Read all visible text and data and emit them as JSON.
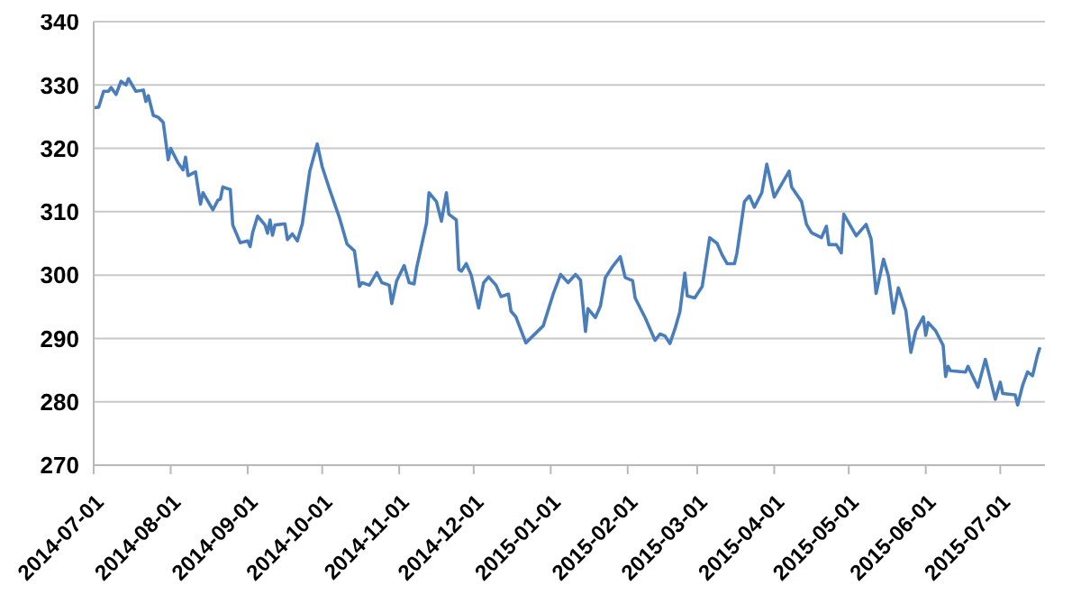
{
  "chart_data": {
    "type": "line",
    "color": "#4a7ebb",
    "marker": "none",
    "line_style": "solid",
    "grid": "y",
    "legend": false,
    "xlim": [
      "2014-07-01",
      "2015-07-19"
    ],
    "xticks": [
      "2014-07-01",
      "2014-08-01",
      "2014-09-01",
      "2014-10-01",
      "2014-11-01",
      "2014-12-01",
      "2015-01-01",
      "2015-02-01",
      "2015-03-01",
      "2015-04-01",
      "2015-05-01",
      "2015-06-01",
      "2015-07-01"
    ],
    "ylim": [
      270,
      340
    ],
    "yticks": [
      270,
      280,
      290,
      300,
      310,
      320,
      330,
      340
    ],
    "x": [
      "2014-07-01",
      "2014-07-03",
      "2014-07-05",
      "2014-07-07",
      "2014-07-08",
      "2014-07-10",
      "2014-07-12",
      "2014-07-14",
      "2014-07-15",
      "2014-07-18",
      "2014-07-21",
      "2014-07-22",
      "2014-07-23",
      "2014-07-25",
      "2014-07-27",
      "2014-07-29",
      "2014-07-31",
      "2014-08-01",
      "2014-08-04",
      "2014-08-06",
      "2014-08-07",
      "2014-08-08",
      "2014-08-11",
      "2014-08-13",
      "2014-08-14",
      "2014-08-18",
      "2014-08-20",
      "2014-08-21",
      "2014-08-22",
      "2014-08-25",
      "2014-08-26",
      "2014-08-29",
      "2014-09-01",
      "2014-09-02",
      "2014-09-03",
      "2014-09-05",
      "2014-09-08",
      "2014-09-09",
      "2014-09-10",
      "2014-09-11",
      "2014-09-12",
      "2014-09-16",
      "2014-09-17",
      "2014-09-19",
      "2014-09-21",
      "2014-09-23",
      "2014-09-26",
      "2014-09-29",
      "2014-10-01",
      "2014-10-04",
      "2014-10-08",
      "2014-10-11",
      "2014-10-14",
      "2014-10-16",
      "2014-10-17",
      "2014-10-20",
      "2014-10-23",
      "2014-10-25",
      "2014-10-28",
      "2014-10-29",
      "2014-10-31",
      "2014-11-03",
      "2014-11-05",
      "2014-11-07",
      "2014-11-08",
      "2014-11-12",
      "2014-11-13",
      "2014-11-16",
      "2014-11-18",
      "2014-11-20",
      "2014-11-21",
      "2014-11-24",
      "2014-11-25",
      "2014-11-26",
      "2014-11-28",
      "2014-11-30",
      "2014-12-03",
      "2014-12-05",
      "2014-12-07",
      "2014-12-10",
      "2014-12-12",
      "2014-12-15",
      "2014-12-16",
      "2014-12-18",
      "2014-12-22",
      "2014-12-29",
      "2015-01-02",
      "2015-01-05",
      "2015-01-08",
      "2015-01-11",
      "2015-01-13",
      "2015-01-15",
      "2015-01-16",
      "2015-01-19",
      "2015-01-21",
      "2015-01-23",
      "2015-01-26",
      "2015-01-29",
      "2015-01-31",
      "2015-02-03",
      "2015-02-04",
      "2015-02-08",
      "2015-02-12",
      "2015-02-14",
      "2015-02-16",
      "2015-02-18",
      "2015-02-20",
      "2015-02-22",
      "2015-02-24",
      "2015-02-25",
      "2015-02-28",
      "2015-03-03",
      "2015-03-06",
      "2015-03-09",
      "2015-03-11",
      "2015-03-13",
      "2015-03-16",
      "2015-03-17",
      "2015-03-20",
      "2015-03-22",
      "2015-03-24",
      "2015-03-27",
      "2015-03-29",
      "2015-04-01",
      "2015-04-07",
      "2015-04-08",
      "2015-04-12",
      "2015-04-14",
      "2015-04-16",
      "2015-04-20",
      "2015-04-22",
      "2015-04-23",
      "2015-04-26",
      "2015-04-28",
      "2015-04-29",
      "2015-05-04",
      "2015-05-08",
      "2015-05-10",
      "2015-05-12",
      "2015-05-15",
      "2015-05-17",
      "2015-05-19",
      "2015-05-21",
      "2015-05-24",
      "2015-05-26",
      "2015-05-28",
      "2015-05-31",
      "2015-06-01",
      "2015-06-02",
      "2015-06-05",
      "2015-06-08",
      "2015-06-09",
      "2015-06-10",
      "2015-06-11",
      "2015-06-17",
      "2015-06-18",
      "2015-06-22",
      "2015-06-25",
      "2015-06-29",
      "2015-07-01",
      "2015-07-02",
      "2015-07-07",
      "2015-07-08",
      "2015-07-10",
      "2015-07-12",
      "2015-07-14",
      "2015-07-16",
      "2015-07-17"
    ],
    "values": [
      326.4,
      326.5,
      329,
      329,
      329.6,
      328.5,
      330.6,
      330,
      331,
      329,
      329.2,
      327.4,
      328.3,
      325.2,
      324.9,
      324.1,
      318.2,
      320,
      317.7,
      316.6,
      318.6,
      315.7,
      316.3,
      311.2,
      313,
      310.3,
      311.8,
      312,
      313.9,
      313.5,
      307.9,
      305.1,
      305.4,
      304.5,
      306.7,
      309.3,
      307.9,
      306.6,
      308.7,
      306.3,
      307.9,
      308.1,
      305.6,
      306.5,
      305.4,
      308.1,
      316.4,
      320.7,
      317.1,
      313.5,
      309,
      304.9,
      303.8,
      298.2,
      298.8,
      298.4,
      300.4,
      298.8,
      298.4,
      295.5,
      299.1,
      301.5,
      298.8,
      298.6,
      301.1,
      308.2,
      313,
      311.6,
      308.5,
      313,
      309.6,
      308.7,
      300.9,
      300.6,
      301.8,
      300,
      294.8,
      298.8,
      299.7,
      298.4,
      296.6,
      297,
      294.3,
      293.4,
      289.3,
      292,
      297,
      300.1,
      298.8,
      300.1,
      299.2,
      291.1,
      294.7,
      293.3,
      295.1,
      299.6,
      301.4,
      302.9,
      299.6,
      299.1,
      296.4,
      293.3,
      289.7,
      290.7,
      290.4,
      289.2,
      291.5,
      294.2,
      300.3,
      296.7,
      296.4,
      298.2,
      305.9,
      305,
      303.2,
      301.8,
      301.8,
      303.5,
      311.6,
      312.5,
      310.7,
      313,
      317.5,
      312.3,
      316.4,
      313.9,
      311.6,
      308,
      306.7,
      305.9,
      307.7,
      304.8,
      304.8,
      303.5,
      309.6,
      306.2,
      308,
      305.7,
      297.1,
      302.5,
      299.8,
      294,
      298,
      294.4,
      287.8,
      291.2,
      293.4,
      290.5,
      292.5,
      291.2,
      288.9,
      284,
      285.6,
      284.9,
      284.7,
      285.6,
      282.3,
      286.7,
      280.4,
      283.1,
      281.3,
      281.1,
      279.5,
      282.6,
      284.7,
      284.1,
      287.4,
      288.6
    ]
  }
}
